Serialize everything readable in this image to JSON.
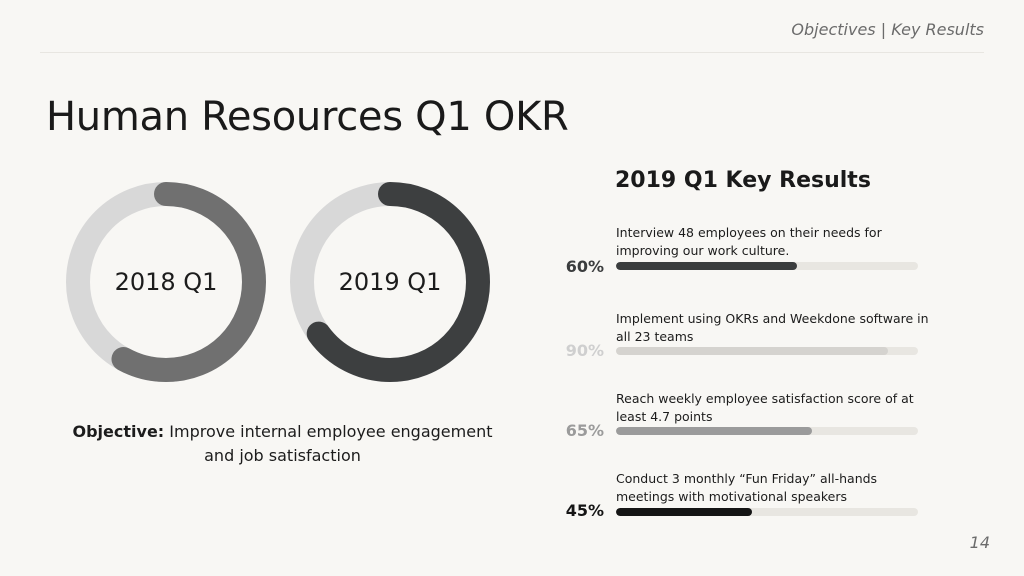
{
  "header": {
    "section": "Objectives | Key Results"
  },
  "title": "Human Resources Q1 OKR",
  "donuts": [
    {
      "label": "2018 Q1",
      "progress": 0.58,
      "track_color": "#d8d8d8",
      "fill_color": "#707070"
    },
    {
      "label": "2019 Q1",
      "progress": 0.65,
      "track_color": "#d8d8d8",
      "fill_color": "#3d3f40"
    }
  ],
  "objective": {
    "label": "Objective:",
    "text": "Improve internal employee engagement and job satisfaction"
  },
  "key_results": {
    "title": "2019 Q1 Key Results",
    "items": [
      {
        "text": "Interview 48 employees on their needs for improving our work culture.",
        "percent_label": "60%",
        "progress": 0.6,
        "color": "#3b3d3e",
        "pct_color": "#3b3d3e"
      },
      {
        "text": "Implement using OKRs and Weekdone software in all 23 teams",
        "percent_label": "90%",
        "progress": 0.9,
        "color": "#d5d3cf",
        "pct_color": "#cfcfcf"
      },
      {
        "text": "Reach weekly employee satisfaction score of at least 4.7 points",
        "percent_label": "65%",
        "progress": 0.65,
        "color": "#9b9b9b",
        "pct_color": "#9b9b9b"
      },
      {
        "text": "Conduct 3 monthly “Fun Friday” all-hands meetings with motivational speakers",
        "percent_label": "45%",
        "progress": 0.45,
        "color": "#151515",
        "pct_color": "#151515"
      }
    ]
  },
  "page_number": "14"
}
